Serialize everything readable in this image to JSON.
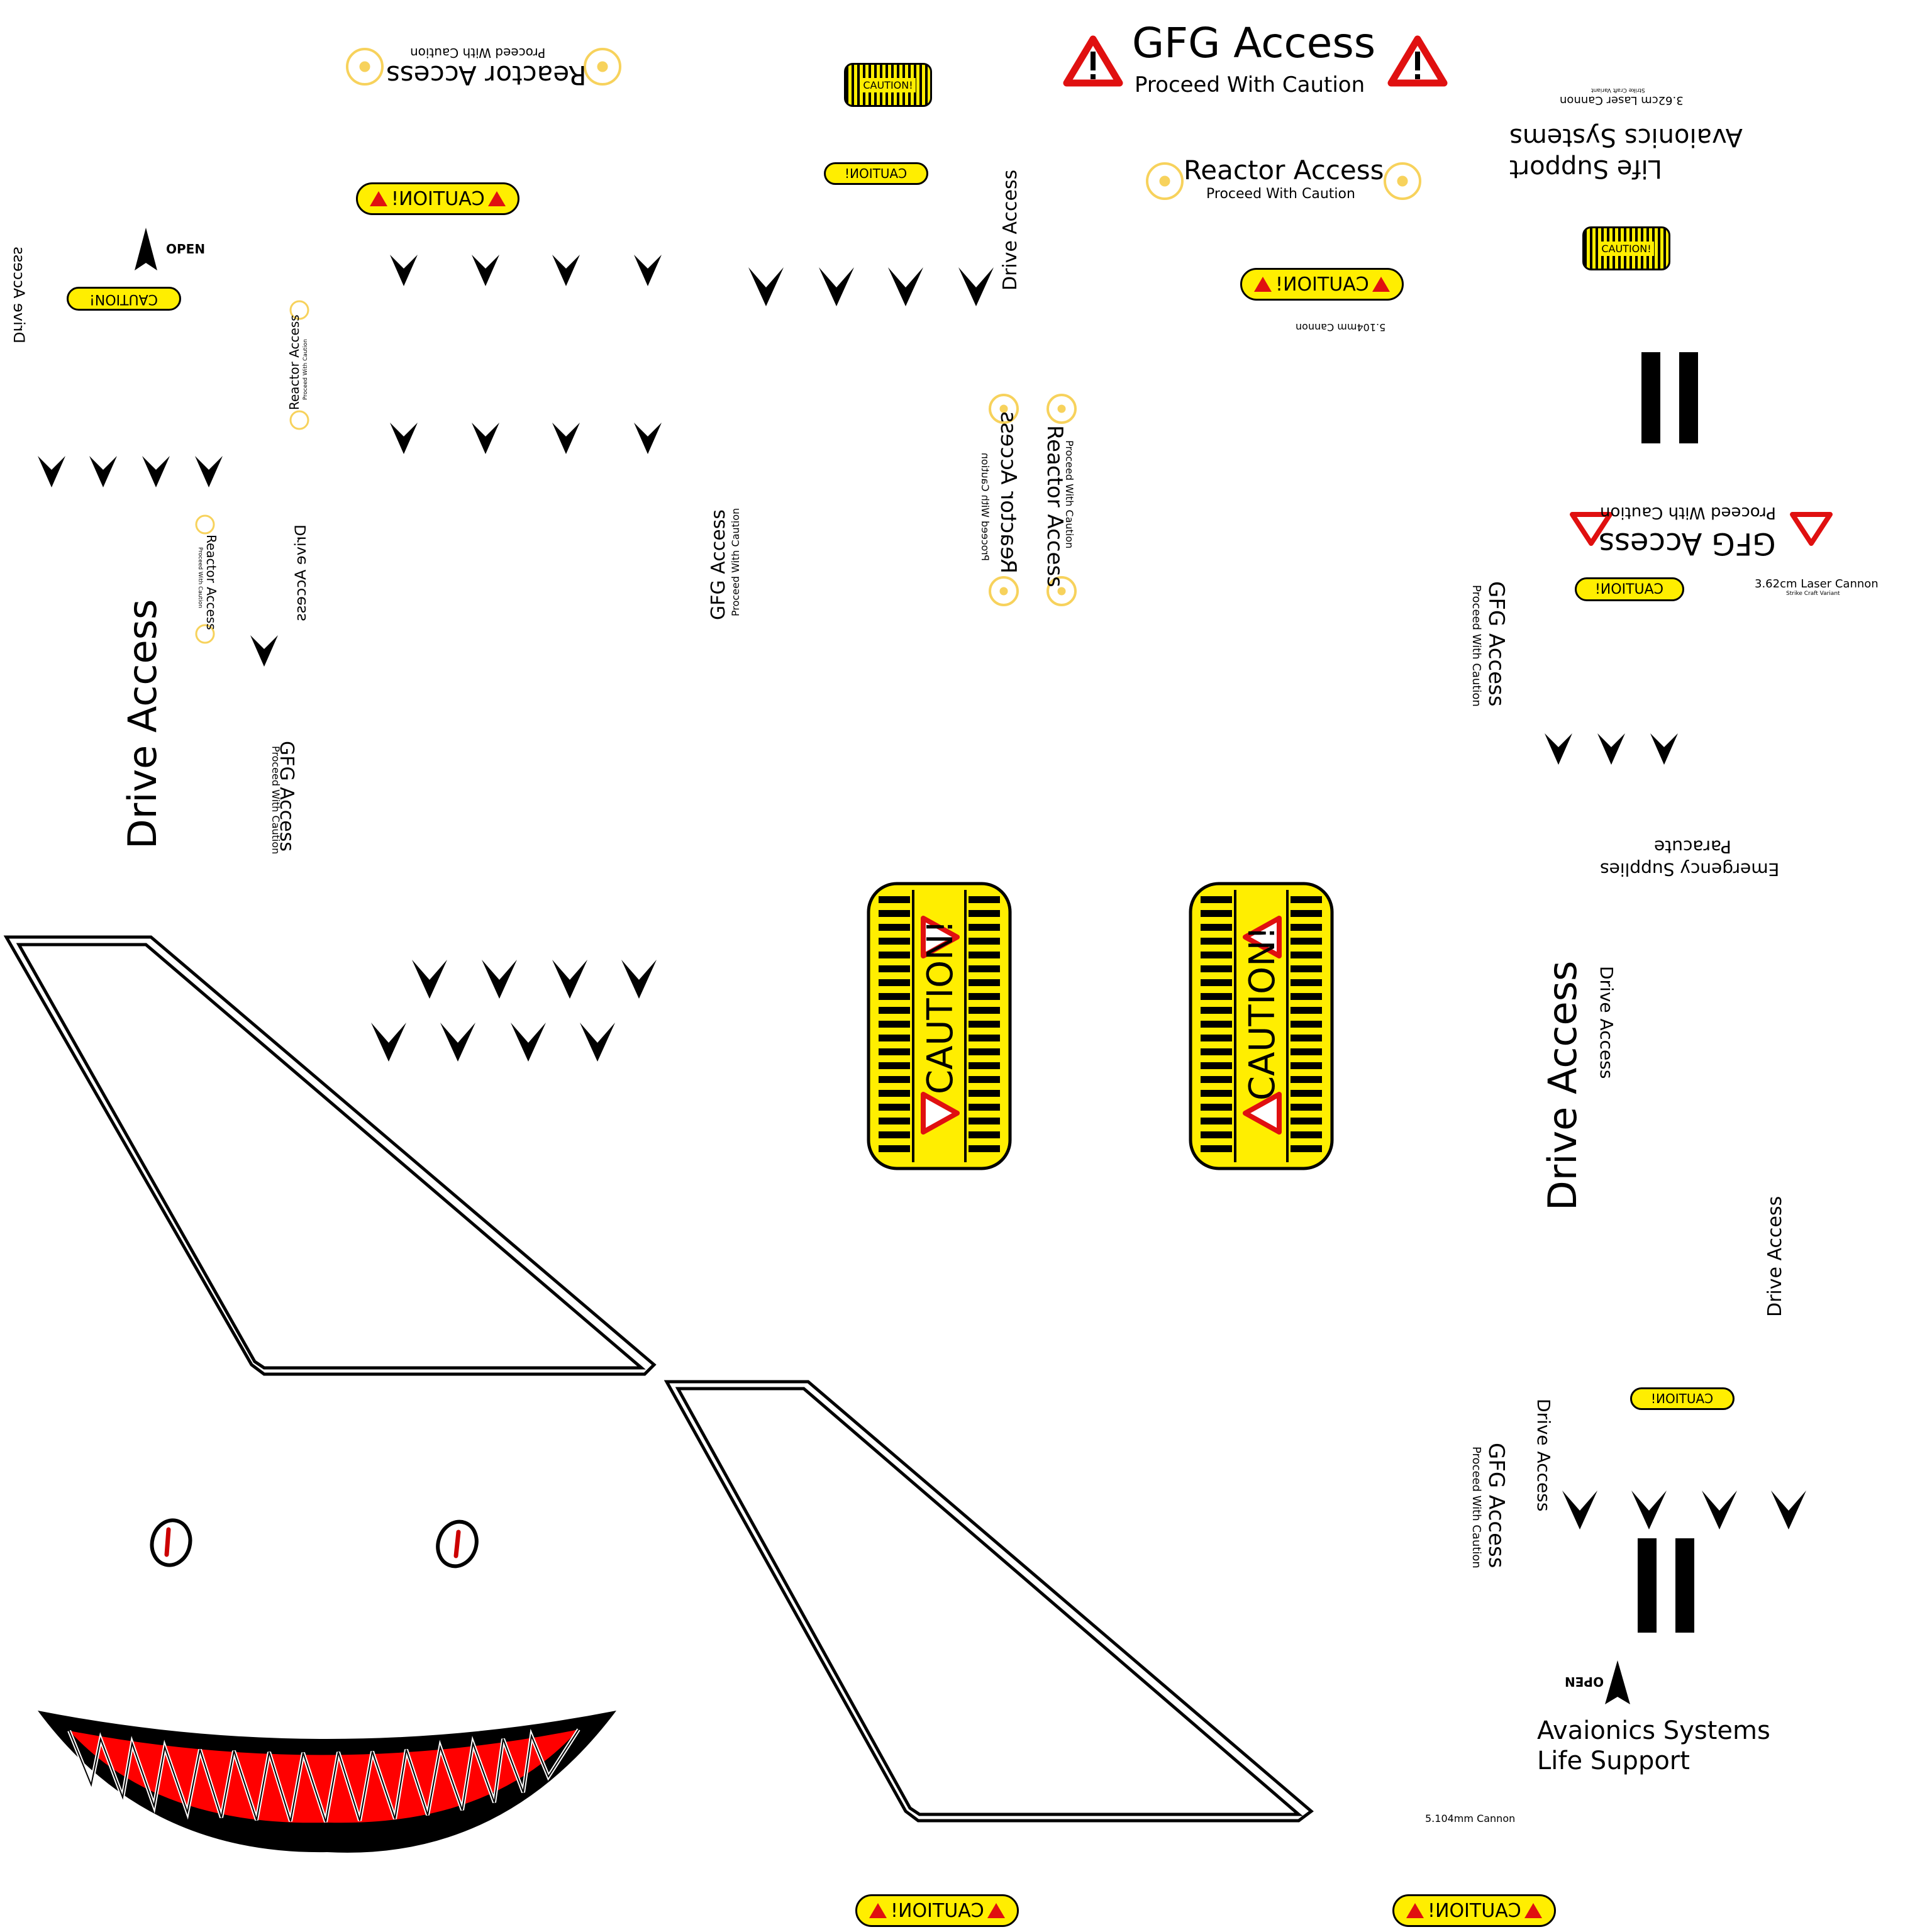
{
  "labels": {
    "gfg_access": "GFG Access",
    "proceed": "Proceed With Caution",
    "reactor_access": "Reactor Access",
    "drive_access": "Drive Access",
    "caution": "CAUTION!",
    "open": "OPEN",
    "avionics_line1": "Avaionics Systems",
    "avionics_line2": "Life Support",
    "laser_cannon": "3.62cm Laser Cannon",
    "strike_variant": "Strike Craft Variant",
    "cannon": "5.104mm Cannon",
    "emergency_line1": "Emergency Supplies",
    "emergency_line2": "Paracute"
  },
  "colors": {
    "caution_yellow": "#ffee00",
    "warning_red": "#e01010",
    "radiation_yellow": "#f7d25c",
    "ink": "#000000",
    "background": "#ffffff"
  },
  "icons": [
    "warning-triangle-icon",
    "radiation-icon",
    "chevron-down-icon",
    "open-arrow-icon",
    "shark-eye-icon",
    "shark-mouth-icon",
    "wing-fin-icon",
    "pause-bars-icon"
  ]
}
